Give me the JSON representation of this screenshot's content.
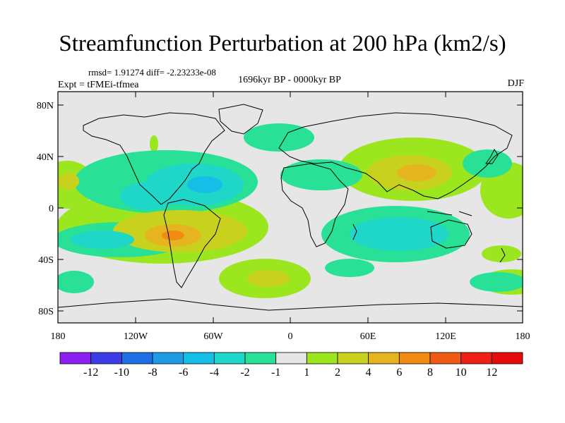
{
  "title": "Streamfunction Perturbation at 200 hPa (km2/s)",
  "stats": "rmsd= 1.91274 diff= -2.23233e-08",
  "experiment": "Expt = tFMEi-tfmea",
  "period": "1696kyr BP - 0000kyr BP",
  "season": "DJF",
  "lat_labels": [
    "80N",
    "40N",
    "0",
    "40S",
    "80S"
  ],
  "lon_labels": [
    "180",
    "120W",
    "60W",
    "0",
    "60E",
    "120E",
    "180"
  ],
  "colorbar": {
    "labels": [
      "-12",
      "-10",
      "-8",
      "-6",
      "-4",
      "-2",
      "-1",
      "1",
      "2",
      "4",
      "6",
      "8",
      "10",
      "12"
    ],
    "colors": [
      "#8a1ff0",
      "#3c3ce6",
      "#1e6ee6",
      "#1e9be6",
      "#14bee6",
      "#1ed7c8",
      "#28e196",
      "#e6e6e6",
      "#9be61e",
      "#c8d21e",
      "#e6b41e",
      "#f08c14",
      "#f05a14",
      "#f01e14",
      "#e60a0a"
    ]
  },
  "colors": {
    "background": "#e6e6e6",
    "neg1": "#28e196",
    "neg2": "#1ed7c8",
    "neg3": "#14bee6",
    "pos1": "#9be61e",
    "pos2": "#c8d21e",
    "pos3": "#e6b41e",
    "pos4": "#f08c14"
  },
  "features": {
    "continents": "continent-outlines",
    "anomalies": "streamfunction-anomaly-contours"
  }
}
